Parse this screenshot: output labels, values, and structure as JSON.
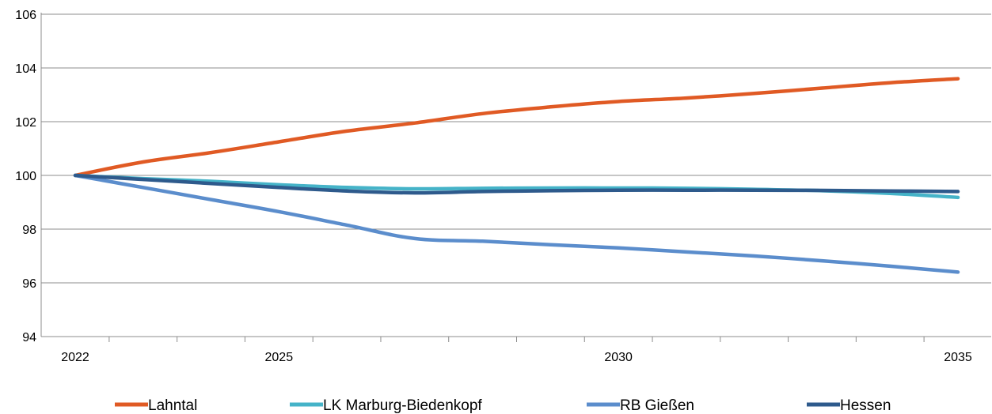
{
  "chart_data": {
    "type": "line",
    "title": "",
    "xlabel": "",
    "ylabel": "",
    "x": [
      2022,
      2023,
      2024,
      2025,
      2026,
      2027,
      2028,
      2029,
      2030,
      2031,
      2032,
      2033,
      2034,
      2035
    ],
    "x_tick_labels": [
      {
        "x": 2022,
        "label": "2022"
      },
      {
        "x": 2025,
        "label": "2025"
      },
      {
        "x": 2030,
        "label": "2030"
      },
      {
        "x": 2035,
        "label": "2035"
      }
    ],
    "ylim": [
      94,
      106
    ],
    "y_ticks": [
      94,
      96,
      98,
      100,
      102,
      104,
      106
    ],
    "grid": "horizontal",
    "legend": "bottom",
    "series": [
      {
        "name": "Lahntal",
        "color": "#e05a24",
        "values": [
          100,
          100.5,
          100.85,
          101.25,
          101.65,
          101.95,
          102.3,
          102.55,
          102.75,
          102.88,
          103.05,
          103.25,
          103.45,
          103.6
        ]
      },
      {
        "name": "LK Marburg-Biedenkopf",
        "color": "#45b3c8",
        "values": [
          100,
          99.88,
          99.78,
          99.65,
          99.55,
          99.5,
          99.52,
          99.53,
          99.53,
          99.52,
          99.48,
          99.43,
          99.33,
          99.18
        ]
      },
      {
        "name": "RB Gießen",
        "color": "#5b8dcc",
        "values": [
          100,
          99.55,
          99.1,
          98.65,
          98.15,
          97.65,
          97.55,
          97.42,
          97.3,
          97.15,
          97.0,
          96.82,
          96.62,
          96.4
        ]
      },
      {
        "name": "Hessen",
        "color": "#2e5a8c",
        "values": [
          100,
          99.85,
          99.7,
          99.55,
          99.42,
          99.35,
          99.4,
          99.43,
          99.45,
          99.45,
          99.45,
          99.44,
          99.42,
          99.4
        ]
      }
    ]
  }
}
